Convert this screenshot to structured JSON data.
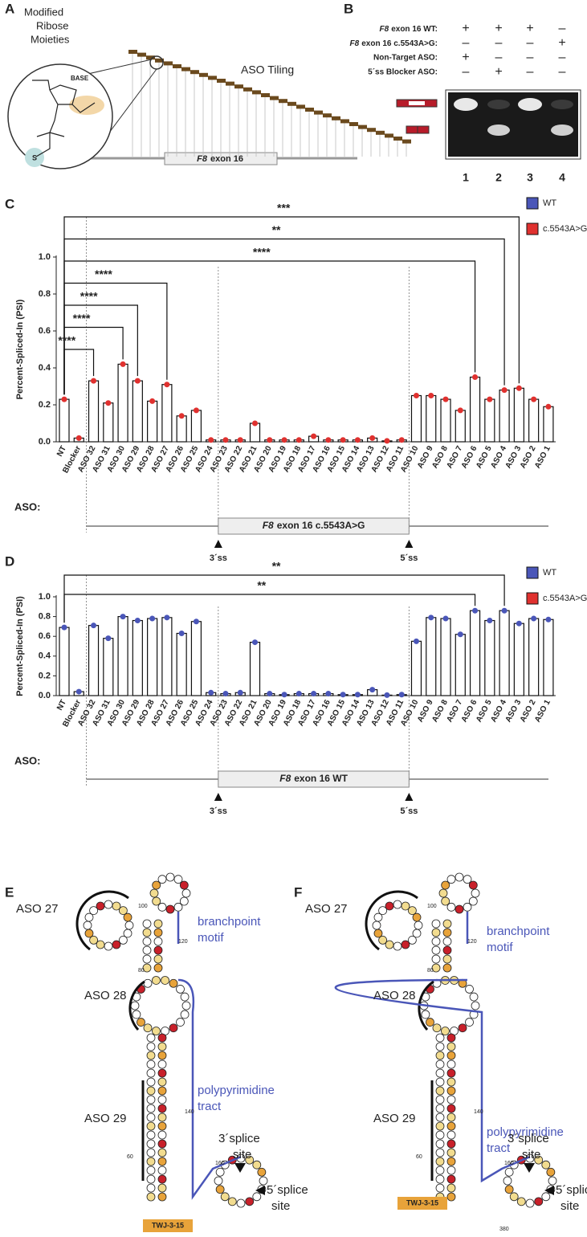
{
  "panel_a": {
    "letter": "A",
    "title_lines": [
      "Modified",
      "Ribose",
      "Moieties"
    ],
    "base_label": "BASE",
    "sulfur_label": "S",
    "tiling_label": "ASO Tiling",
    "exon": {
      "gene": "F8",
      "label": "exon 16"
    }
  },
  "panel_b": {
    "letter": "B",
    "rows": [
      {
        "gene": "F8",
        "label": "exon 16 WT:",
        "signs": [
          "+",
          "+",
          "+",
          "–"
        ]
      },
      {
        "gene": "F8",
        "label": "exon 16 c.5543A>G:",
        "signs": [
          "–",
          "–",
          "–",
          "+"
        ]
      },
      {
        "label": "Non-Target ASO:",
        "signs": [
          "+",
          "–",
          "–",
          "–"
        ]
      },
      {
        "label": "5´ss Blocker ASO:",
        "signs": [
          "–",
          "+",
          "–",
          "–"
        ]
      }
    ],
    "lanes": [
      "1",
      "2",
      "3",
      "4"
    ]
  },
  "chart_data": [
    {
      "panel": "C",
      "type": "bar",
      "ylabel": "Percent-Spliced-In (PSI)",
      "xlabel": "ASO:",
      "categories": [
        "NT",
        "Blocker",
        "ASO 32",
        "ASO 31",
        "ASO 30",
        "ASO 29",
        "ASO 28",
        "ASO 27",
        "ASO 26",
        "ASO 25",
        "ASO 24",
        "ASO 23",
        "ASO 22",
        "ASO 21",
        "ASO 20",
        "ASO 19",
        "ASO 18",
        "ASO 17",
        "ASO 16",
        "ASO 15",
        "ASO 14",
        "ASO 13",
        "ASO 12",
        "ASO 11",
        "ASO 10",
        "ASO 9",
        "ASO 8",
        "ASO 7",
        "ASO 6",
        "ASO 5",
        "ASO 4",
        "ASO 3",
        "ASO 2",
        "ASO 1"
      ],
      "series": [
        {
          "name": "WT",
          "color": "#4a56b8",
          "values": [
            null,
            null,
            null,
            null,
            null,
            null,
            null,
            null,
            null,
            null,
            null,
            null,
            null,
            null,
            null,
            null,
            null,
            null,
            null,
            null,
            null,
            null,
            null,
            null,
            null,
            null,
            null,
            null,
            null,
            null,
            null,
            null,
            null,
            null
          ]
        },
        {
          "name": "c.5543A>G",
          "color": "#e0312f",
          "values": [
            0.23,
            0.02,
            0.33,
            0.21,
            0.42,
            0.33,
            0.22,
            0.31,
            0.14,
            0.17,
            0.01,
            0.01,
            0.01,
            0.1,
            0.01,
            0.01,
            0.01,
            0.03,
            0.01,
            0.01,
            0.01,
            0.02,
            0.005,
            0.01,
            0.25,
            0.25,
            0.23,
            0.17,
            0.35,
            0.23,
            0.28,
            0.29,
            0.23,
            0.19
          ]
        }
      ],
      "ylim": [
        0,
        1
      ],
      "yticks": [
        {
          "value": 0,
          "label": "0.0"
        },
        0.2,
        0.4,
        0.6,
        0.8,
        {
          "value": 1,
          "label": "1.0"
        }
      ],
      "annotations": [
        {
          "from": "NT",
          "to": "ASO 3",
          "label": "***"
        },
        {
          "from": "NT",
          "to": "ASO 4",
          "label": "**"
        },
        {
          "from": "NT",
          "to": "ASO 6",
          "label": "****"
        },
        {
          "from": "NT",
          "to": "ASO 27",
          "label": "****"
        },
        {
          "from": "NT",
          "to": "ASO 29",
          "label": "****"
        },
        {
          "from": "NT",
          "to": "ASO 30",
          "label": "****"
        },
        {
          "from": "NT",
          "to": "ASO 32",
          "label": "****"
        }
      ],
      "gene_region": {
        "gene": "F8",
        "label": "exon 16 c.5543A>G",
        "start_marker": "3´ss",
        "end_marker": "5´ss"
      }
    },
    {
      "panel": "D",
      "type": "bar",
      "ylabel": "Percent-Spliced-In (PSI)",
      "xlabel": "ASO:",
      "categories": [
        "NT",
        "Blocker",
        "ASO 32",
        "ASO 31",
        "ASO 30",
        "ASO 29",
        "ASO 28",
        "ASO 27",
        "ASO 26",
        "ASO 25",
        "ASO 24",
        "ASO 23",
        "ASO 22",
        "ASO 21",
        "ASO 20",
        "ASO 19",
        "ASO 18",
        "ASO 17",
        "ASO 16",
        "ASO 15",
        "ASO 14",
        "ASO 13",
        "ASO 12",
        "ASO 11",
        "ASO 10",
        "ASO 9",
        "ASO 8",
        "ASO 7",
        "ASO 6",
        "ASO 5",
        "ASO 4",
        "ASO 3",
        "ASO 2",
        "ASO 1"
      ],
      "series": [
        {
          "name": "WT",
          "color": "#4a56b8",
          "values": [
            0.69,
            0.04,
            0.71,
            0.58,
            0.8,
            0.76,
            0.78,
            0.79,
            0.63,
            0.75,
            0.03,
            0.02,
            0.03,
            0.54,
            0.02,
            0.01,
            0.02,
            0.02,
            0.02,
            0.01,
            0.01,
            0.06,
            0.005,
            0.01,
            0.55,
            0.79,
            0.78,
            0.62,
            0.86,
            0.76,
            0.86,
            0.73,
            0.78,
            0.77
          ]
        },
        {
          "name": "c.5543A>G",
          "color": "#e0312f",
          "values": [
            null,
            null,
            null,
            null,
            null,
            null,
            null,
            null,
            null,
            null,
            null,
            null,
            null,
            null,
            null,
            null,
            null,
            null,
            null,
            null,
            null,
            null,
            null,
            null,
            null,
            null,
            null,
            null,
            null,
            null,
            null,
            null,
            null,
            null
          ]
        }
      ],
      "ylim": [
        0,
        1
      ],
      "yticks": [
        {
          "value": 0,
          "label": "0.0"
        },
        0.2,
        0.4,
        0.6,
        0.8,
        {
          "value": 1,
          "label": "1.0"
        }
      ],
      "annotations": [
        {
          "from": "NT",
          "to": "ASO 4",
          "label": "**"
        },
        {
          "from": "NT",
          "to": "ASO 6",
          "label": "**"
        }
      ],
      "gene_region": {
        "gene": "F8",
        "label": "exon 16 WT",
        "start_marker": "3´ss",
        "end_marker": "5´ss"
      }
    }
  ],
  "panel_e": {
    "letter": "E",
    "aso_labels": [
      "ASO 27",
      "ASO 28",
      "ASO 29"
    ],
    "branchpoint": [
      "branchpoint",
      "motif"
    ],
    "polypyrimidine": [
      "polypyrimidine",
      "tract"
    ],
    "splice3": [
      "3´splice",
      "site"
    ],
    "splice5": [
      "5´splice",
      "site"
    ],
    "twj": "TWJ-3-15",
    "positions": [
      "100",
      "120",
      "80",
      "140",
      "60",
      "160"
    ]
  },
  "panel_f": {
    "letter": "F",
    "aso_labels": [
      "ASO 27",
      "ASO 28",
      "ASO 29"
    ],
    "branchpoint": [
      "branchpoint",
      "motif"
    ],
    "polypyrimidine": [
      "polypyrimidine",
      "tract"
    ],
    "splice3": [
      "3´splice",
      "site"
    ],
    "splice5": [
      "5´splice",
      "site"
    ],
    "twj": "TWJ-3-15",
    "positions": [
      "100",
      "120",
      "80",
      "140",
      "60",
      "160",
      "380"
    ]
  }
}
